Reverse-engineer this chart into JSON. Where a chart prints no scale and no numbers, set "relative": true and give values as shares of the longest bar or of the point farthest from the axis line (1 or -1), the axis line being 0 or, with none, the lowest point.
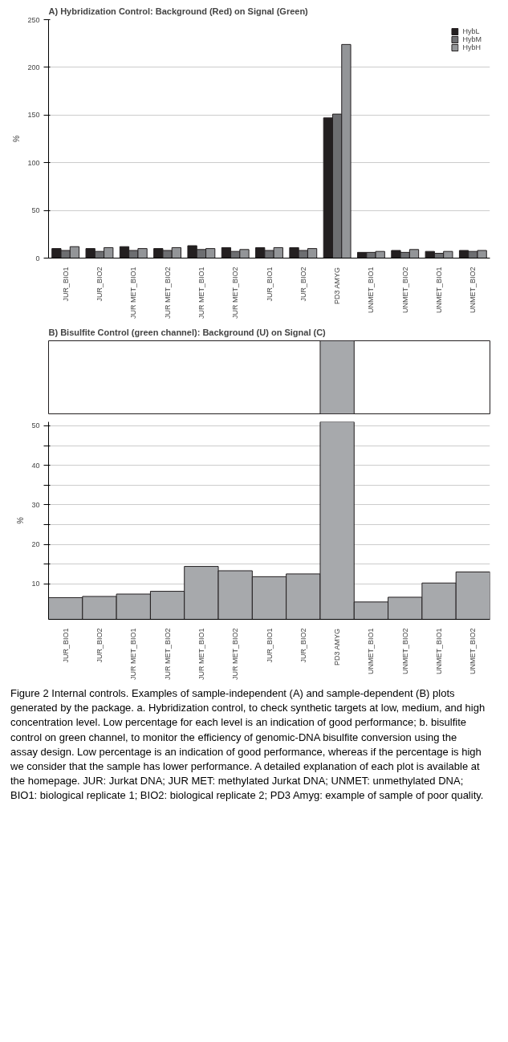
{
  "chart_data": [
    {
      "type": "bar",
      "title": "A)          Hybridization Control: Background (Red) on Signal (Green)",
      "ylabel": "%",
      "categories": [
        "JUR_BIO1",
        "JUR_BIO2",
        "JUR MET_BIO1",
        "JUR MET_BIO2",
        "JUR MET_BIO1",
        "JUR MET_BIO2",
        "JUR_BIO1",
        "JUR_BIO2",
        "PD3 AMYG",
        "UNMET_BIO1",
        "UNMET_BIO2",
        "UNMET_BIO1",
        "UNMET_BIO2"
      ],
      "series": [
        {
          "name": "HybL",
          "color": "#231f20",
          "values": [
            10,
            10,
            12,
            10,
            13,
            11,
            11,
            11,
            147,
            6,
            8,
            7,
            8
          ]
        },
        {
          "name": "HybM",
          "color": "#6d6e71",
          "values": [
            8,
            7,
            8,
            8,
            9,
            7,
            8,
            8,
            151,
            6,
            6,
            5,
            7
          ]
        },
        {
          "name": "HybH",
          "color": "#939598",
          "values": [
            12,
            11,
            10,
            11,
            10,
            9,
            11,
            10,
            224,
            7,
            9,
            7,
            8
          ]
        }
      ],
      "ylim": [
        0,
        250
      ],
      "yticks": [
        0,
        50,
        100,
        150,
        200,
        250
      ],
      "grid": "y",
      "legend": "top right"
    },
    {
      "type": "bar",
      "title": "B)          Bisulfite Control (green channel): Background (U) on Signal (C)",
      "relative": true,
      "categories": [
        null,
        null,
        null,
        null,
        null,
        null,
        null,
        null,
        null,
        null,
        null,
        null,
        null
      ],
      "values": [
        null,
        null,
        null,
        null,
        null,
        null,
        null,
        null,
        1,
        null,
        null,
        null,
        null
      ],
      "color": "#a7a9ac",
      "tick_labels": false
    },
    {
      "type": "bar",
      "ylabel": "%",
      "categories": [
        "JUR_BIO1",
        "JUR_BIO2",
        "JUR MET_BIO1",
        "JUR MET_BIO2",
        "JUR MET_BIO1",
        "JUR MET_BIO2",
        "JUR_BIO1",
        "JUR_BIO2",
        "PD3 AMYG",
        "UNMET_BIO1",
        "UNMET_BIO2",
        "UNMET_BIO1",
        "UNMET_BIO2"
      ],
      "values": [
        6.5,
        6.8,
        7.4,
        8.1,
        14.4,
        13.3,
        11.8,
        12.5,
        51,
        5.4,
        6.6,
        10.2,
        13.0
      ],
      "color": "#a7a9ac",
      "ylim": [
        1,
        51
      ],
      "yticks": [
        10,
        {
          "value": 15,
          "label": null
        },
        20,
        {
          "value": 25,
          "label": null
        },
        30,
        {
          "value": 35,
          "label": null
        },
        40,
        {
          "value": 45,
          "label": null
        },
        50
      ],
      "grid": "y",
      "annotations": [
        "Figure 2 Internal controls. Examples of sample-independent (A) and sample-dependent (B) plots generated by the package. a. Hybridization control, to check synthetic targets at low, medium, and high concentration level. Low percentage for each level is an indication of good performance; b. bisulfite control on green channel, to monitor the efficiency of genomic-DNA bisulfite conversion using the assay design. Low percentage is an indication of good performance, whereas if the percentage is high we consider that the sample has lower performance. A detailed explanation of each plot is available at the homepage. JUR: Jurkat DNA; JUR MET: methylated Jurkat DNA; UNMET: unmethylated DNA; BIO1: biological replicate 1; BIO2: biological replicate 2; PD3 Amyg: example of sample of poor quality."
      ]
    }
  ]
}
